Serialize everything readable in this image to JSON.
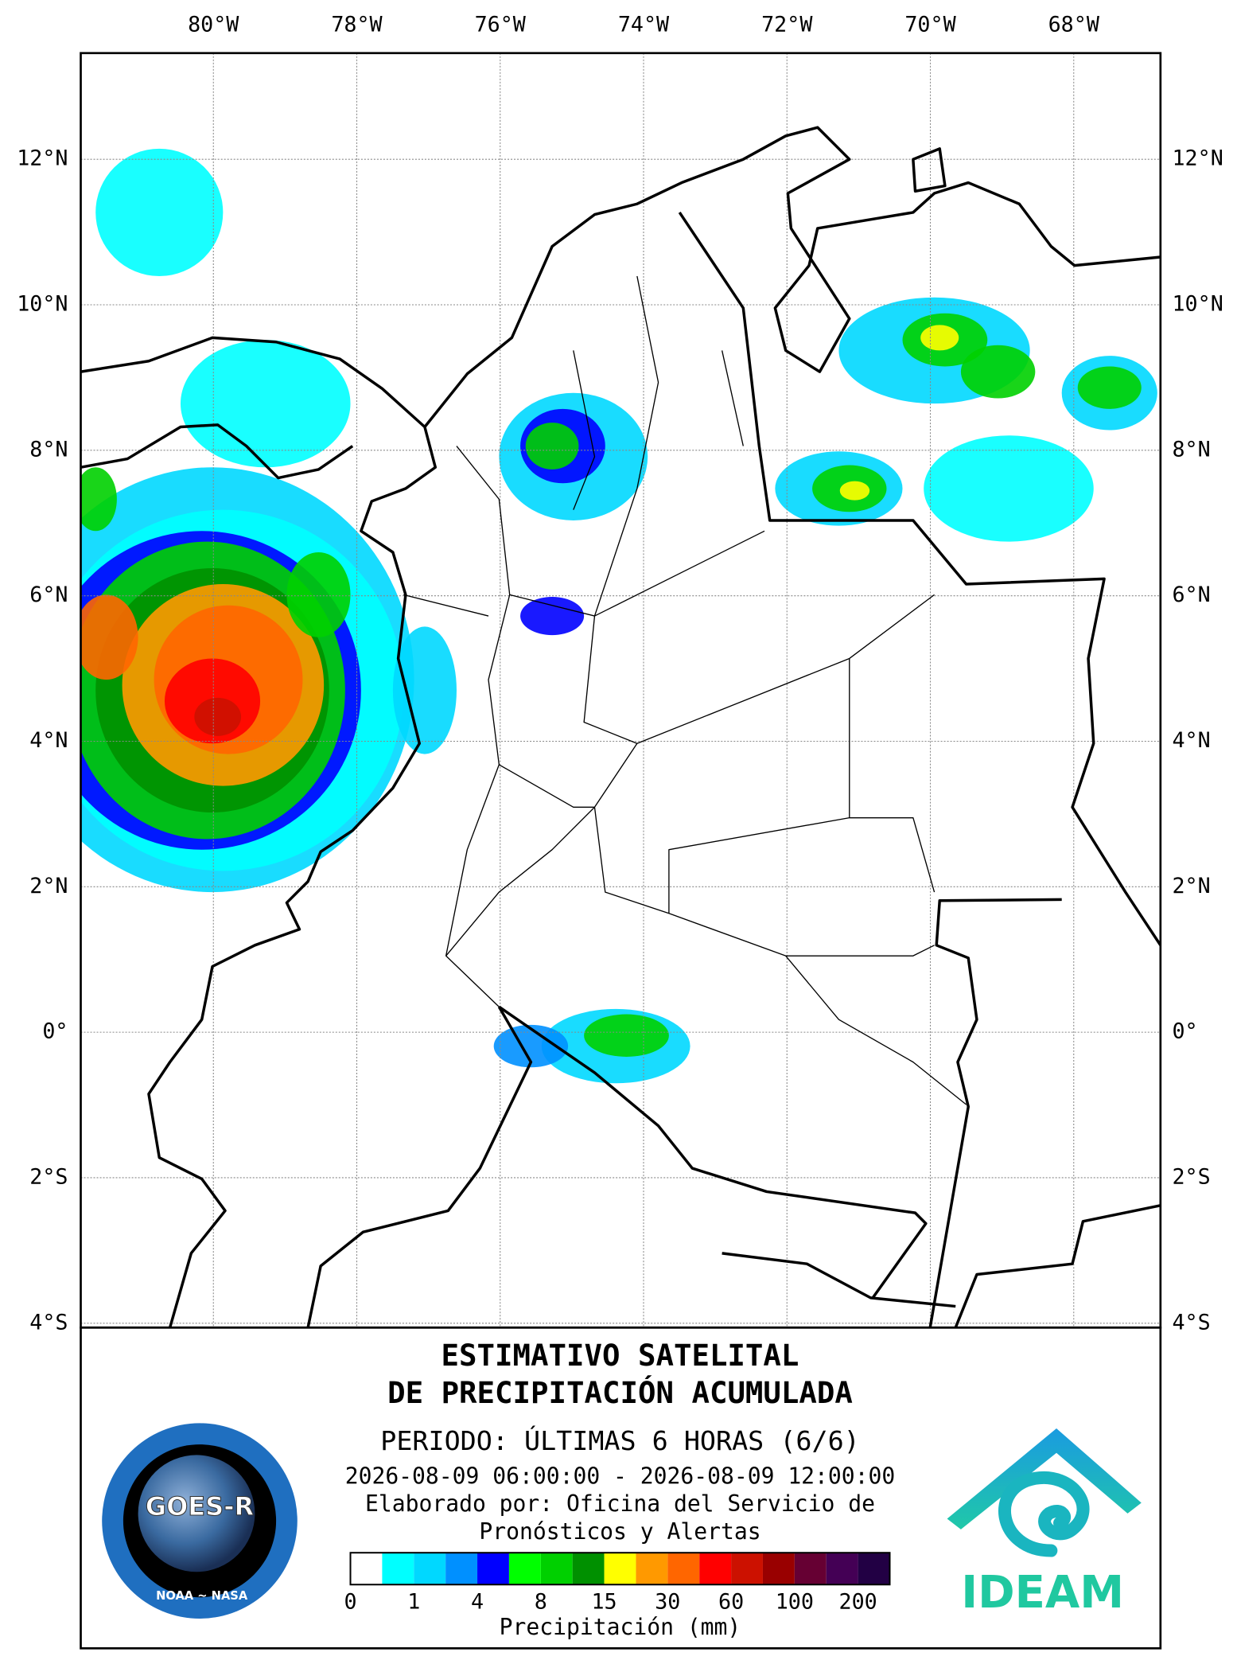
{
  "map": {
    "xlim": [
      -81.85,
      -66.79
    ],
    "ylim": [
      -4.06,
      13.46
    ],
    "grid": true,
    "xticks": [
      {
        "value": -80,
        "label": "80°W"
      },
      {
        "value": -78,
        "label": "78°W"
      },
      {
        "value": -76,
        "label": "76°W"
      },
      {
        "value": -74,
        "label": "74°W"
      },
      {
        "value": -72,
        "label": "72°W"
      },
      {
        "value": -70,
        "label": "70°W"
      },
      {
        "value": -68,
        "label": "68°W"
      }
    ],
    "yticks": [
      {
        "value": 12,
        "label": "12°N"
      },
      {
        "value": 10,
        "label": "10°N"
      },
      {
        "value": 8,
        "label": "8°N"
      },
      {
        "value": 6,
        "label": "6°N"
      },
      {
        "value": 4,
        "label": "4°N"
      },
      {
        "value": 2,
        "label": "2°N"
      },
      {
        "value": 0,
        "label": "0°"
      },
      {
        "value": -2,
        "label": "2°S"
      },
      {
        "value": -4,
        "label": "4°S"
      }
    ]
  },
  "title": [
    "ESTIMATIVO SATELITAL",
    "DE PRECIPITACIÓN ACUMULADA"
  ],
  "period": "PERIODO: ÚLTIMAS 6 HORAS (6/6)",
  "dates": "2026-08-09 06:00:00 - 2026-08-09 12:00:00",
  "credit": [
    "Elaborado por: Oficina del Servicio de",
    "Pronósticos y Alertas"
  ],
  "colorbar": {
    "colors": [
      "#ffffff",
      "#00ffff",
      "#00d8ff",
      "#0090ff",
      "#0000ff",
      "#00ff00",
      "#00d000",
      "#009000",
      "#ffff00",
      "#ff9900",
      "#ff6600",
      "#ff0000",
      "#cc1100",
      "#990000",
      "#660033",
      "#440055",
      "#220044"
    ],
    "levels": [
      0,
      1,
      4,
      8,
      15,
      30,
      60,
      100,
      200
    ],
    "label": "Precipitación (mm)"
  },
  "logos": {
    "goes": "GOES-R",
    "goes_sub": "NOAA ~ NASA",
    "ideam": "IDEAM"
  }
}
